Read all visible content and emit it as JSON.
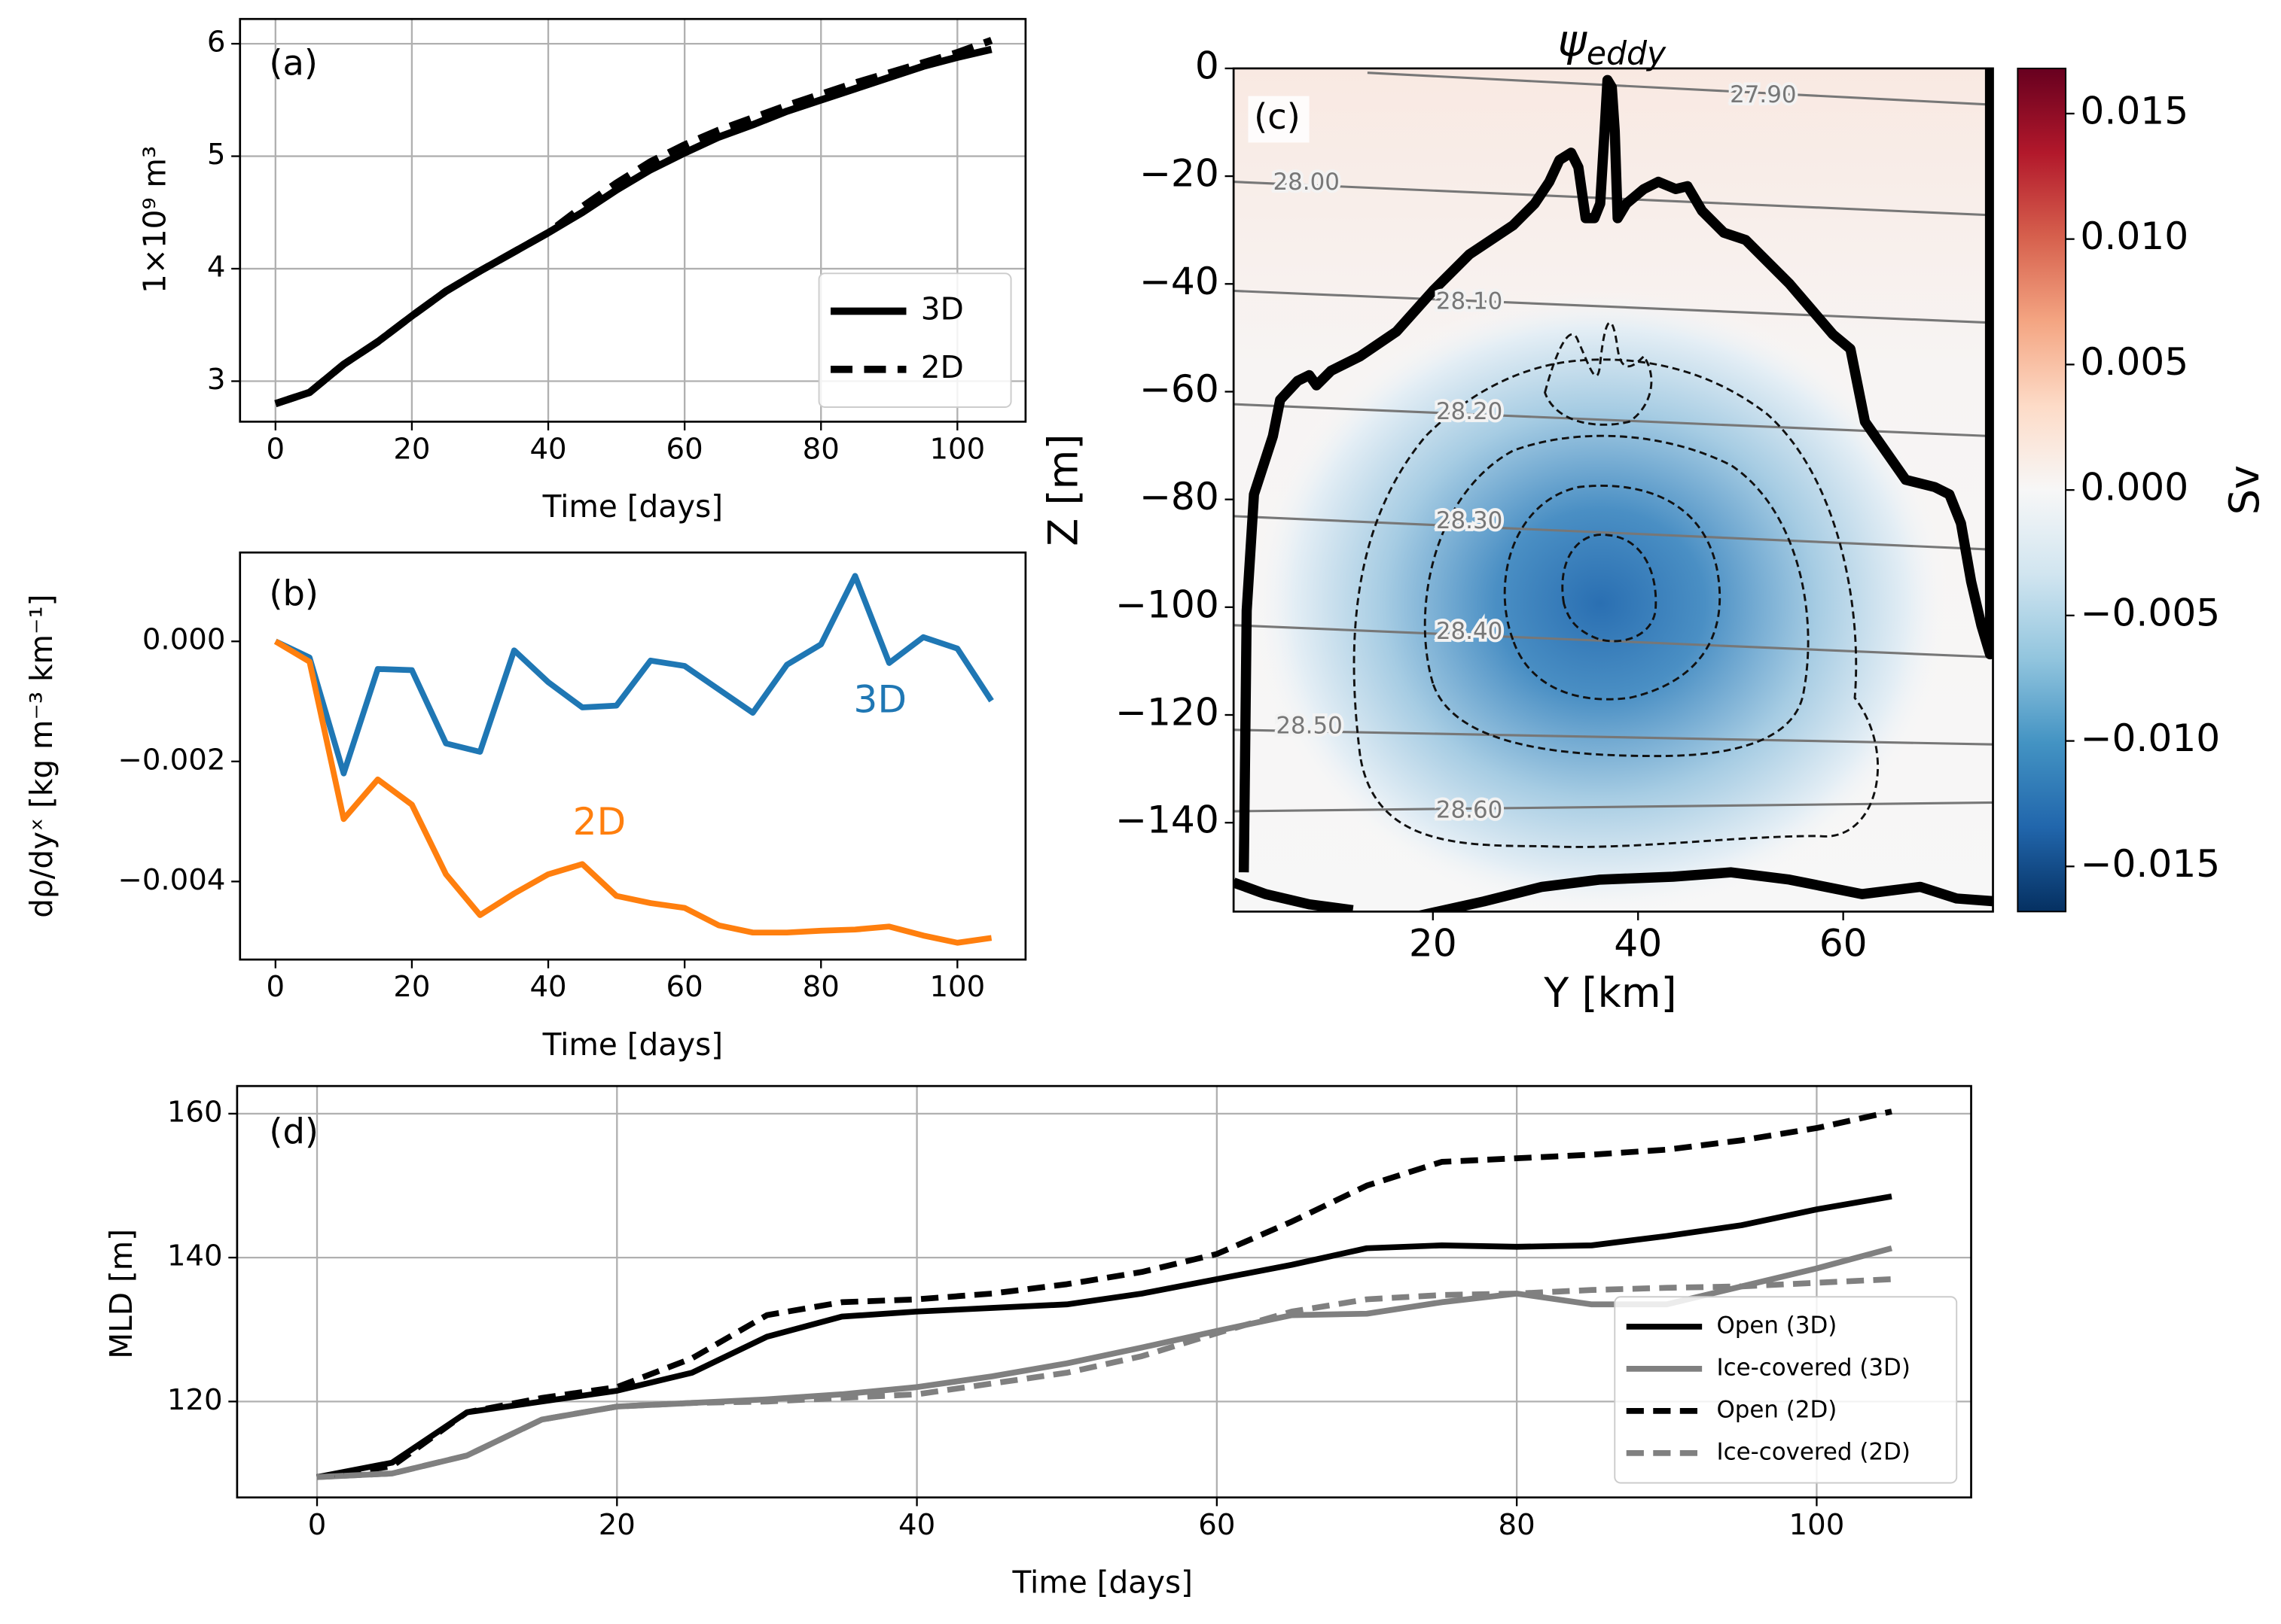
{
  "chart_data": [
    {
      "type": "line",
      "panel_label": "(a)",
      "xlabel": "Time [days]",
      "ylabel": "1×10⁹ m³",
      "x": [
        0,
        5,
        10,
        15,
        20,
        25,
        30,
        35,
        40,
        45,
        50,
        55,
        60,
        65,
        70,
        75,
        80,
        85,
        90,
        95,
        100,
        105
      ],
      "series": [
        {
          "name": "3D",
          "color": "#000000",
          "linestyle": "solid",
          "values": [
            2.8,
            2.9,
            3.15,
            3.35,
            3.58,
            3.8,
            3.98,
            4.15,
            4.32,
            4.5,
            4.7,
            4.88,
            5.03,
            5.17,
            5.28,
            5.4,
            5.5,
            5.6,
            5.7,
            5.8,
            5.88,
            5.95
          ]
        },
        {
          "name": "2D",
          "color": "#000000",
          "linestyle": "dashed",
          "values": [
            2.8,
            2.9,
            3.15,
            3.35,
            3.58,
            3.8,
            3.98,
            4.15,
            4.32,
            4.55,
            4.76,
            4.95,
            5.1,
            5.23,
            5.34,
            5.45,
            5.55,
            5.65,
            5.74,
            5.83,
            5.92,
            6.03
          ]
        }
      ],
      "xlim": [
        -5.2,
        110
      ],
      "ylim": [
        2.64,
        6.22
      ],
      "xticks": [
        0,
        20,
        40,
        60,
        80,
        100
      ],
      "yticks": [
        3,
        4,
        5,
        6
      ],
      "grid": true,
      "legend": "lower right"
    },
    {
      "type": "line",
      "panel_label": "(b)",
      "xlabel": "Time [days]",
      "ylabel": "dρ/dyˣ [kg m⁻³ km⁻¹]",
      "x": [
        0,
        5,
        10,
        15,
        20,
        25,
        30,
        35,
        40,
        45,
        50,
        55,
        60,
        65,
        70,
        75,
        80,
        85,
        90,
        95,
        100,
        105
      ],
      "series": [
        {
          "name": "3D",
          "color": "#1f77b4",
          "linestyle": "solid",
          "values": [
            0,
            -0.00027,
            -0.0022,
            -0.00046,
            -0.00048,
            -0.0017,
            -0.00184,
            -0.00015,
            -0.00068,
            -0.0011,
            -0.00107,
            -0.00032,
            -0.00041,
            -0.0008,
            -0.00119,
            -0.00039,
            -5e-05,
            0.00109,
            -0.00036,
            7e-05,
            -0.00012,
            -0.00099
          ]
        },
        {
          "name": "2D",
          "color": "#ff7f0e",
          "linestyle": "solid",
          "values": [
            0,
            -0.00034,
            -0.00296,
            -0.0023,
            -0.00272,
            -0.00388,
            -0.00456,
            -0.0042,
            -0.00388,
            -0.00371,
            -0.00424,
            -0.00436,
            -0.00444,
            -0.00473,
            -0.00485,
            -0.00485,
            -0.00482,
            -0.0048,
            -0.00475,
            -0.0049,
            -0.00502,
            -0.00494
          ]
        }
      ],
      "annotations": [
        {
          "text": "3D",
          "color": "#1f77b4"
        },
        {
          "text": "2D",
          "color": "#ff7f0e"
        }
      ],
      "xlim": [
        -5.2,
        110
      ],
      "ylim": [
        -0.0053,
        0.00148
      ],
      "xticks": [
        0,
        20,
        40,
        60,
        80,
        100
      ],
      "yticks": [
        {
          "value": 0,
          "label": "0.000"
        },
        {
          "value": -0.002,
          "label": "−0.002"
        },
        {
          "value": -0.004,
          "label": "−0.004"
        }
      ],
      "grid": false
    },
    {
      "type": "heatmap",
      "panel_label": "(c)",
      "title": {
        "symbol": "ψ",
        "subscript": "eddy"
      },
      "xlabel": "Y [km]",
      "ylabel": "Z [m]",
      "xlim": [
        0.57,
        74.6
      ],
      "ylim": [
        -156.5,
        0
      ],
      "xticks": [
        20,
        40,
        60
      ],
      "yticks": [
        0,
        {
          "value": -20,
          "label": "−20"
        },
        {
          "value": -40,
          "label": "−40"
        },
        {
          "value": -60,
          "label": "−60"
        },
        {
          "value": -80,
          "label": "−80"
        },
        {
          "value": -100,
          "label": "−100"
        },
        {
          "value": -120,
          "label": "−120"
        },
        {
          "value": -140,
          "label": "−140"
        }
      ],
      "contour_labels": [
        "27.90",
        "28.00",
        "28.10",
        "28.20",
        "28.30",
        "28.40",
        "28.50",
        "28.60"
      ],
      "colorbar": {
        "label": "Sv",
        "lim": [
          -0.0168,
          0.0168
        ],
        "ticks": [
          0.015,
          {
            "value": 0.01,
            "label": "0.010"
          },
          0.005,
          {
            "value": 0,
            "label": "0.000"
          },
          {
            "value": -0.005,
            "label": "−0.005"
          },
          {
            "value": -0.01,
            "label": "−0.010"
          },
          {
            "value": -0.015,
            "label": "−0.015"
          }
        ]
      }
    },
    {
      "type": "line",
      "panel_label": "(d)",
      "xlabel": "Time [days]",
      "ylabel": "MLD [m]",
      "x": [
        0,
        5,
        10,
        15,
        20,
        25,
        30,
        35,
        40,
        45,
        50,
        55,
        60,
        65,
        70,
        75,
        80,
        85,
        90,
        95,
        100,
        105
      ],
      "series": [
        {
          "name": "Open (3D)",
          "color": "#000000",
          "linestyle": "solid",
          "values": [
            109.5,
            111.5,
            118.5,
            120,
            121.5,
            124,
            129,
            131.8,
            132.5,
            133,
            133.5,
            135,
            137,
            139,
            141.3,
            141.7,
            141.5,
            141.7,
            143,
            144.5,
            146.7,
            148.5
          ]
        },
        {
          "name": "Ice-covered (3D)",
          "color": "#808080",
          "linestyle": "solid",
          "values": [
            109.5,
            110,
            112.5,
            117.5,
            119.3,
            119.8,
            120.3,
            121,
            122,
            123.5,
            125.3,
            127.5,
            129.8,
            132,
            132.2,
            133.8,
            135,
            133.5,
            133.5,
            136,
            138.5,
            141.3
          ]
        },
        {
          "name": "Open (2D)",
          "color": "#000000",
          "linestyle": "dashed",
          "values": [
            109.5,
            111,
            118.5,
            120.5,
            122,
            126,
            132,
            133.8,
            134.2,
            135,
            136.3,
            138,
            140.5,
            145,
            150,
            153.3,
            153.8,
            154.3,
            155,
            156.3,
            158,
            160.3
          ]
        },
        {
          "name": "Ice-covered (2D)",
          "color": "#808080",
          "linestyle": "dashed",
          "values": [
            109.5,
            110,
            112.5,
            117.5,
            119.3,
            119.8,
            120,
            120.5,
            121,
            122.5,
            124,
            126.3,
            129.5,
            132.5,
            134.2,
            134.8,
            135,
            135.5,
            135.8,
            136,
            136.5,
            137
          ]
        }
      ],
      "xlim": [
        -5.33,
        110.3
      ],
      "ylim": [
        106.67,
        163.84
      ],
      "xticks": [
        0,
        20,
        40,
        60,
        80,
        100
      ],
      "yticks": [
        120,
        140,
        160
      ],
      "grid": true,
      "legend": "lower right"
    }
  ]
}
